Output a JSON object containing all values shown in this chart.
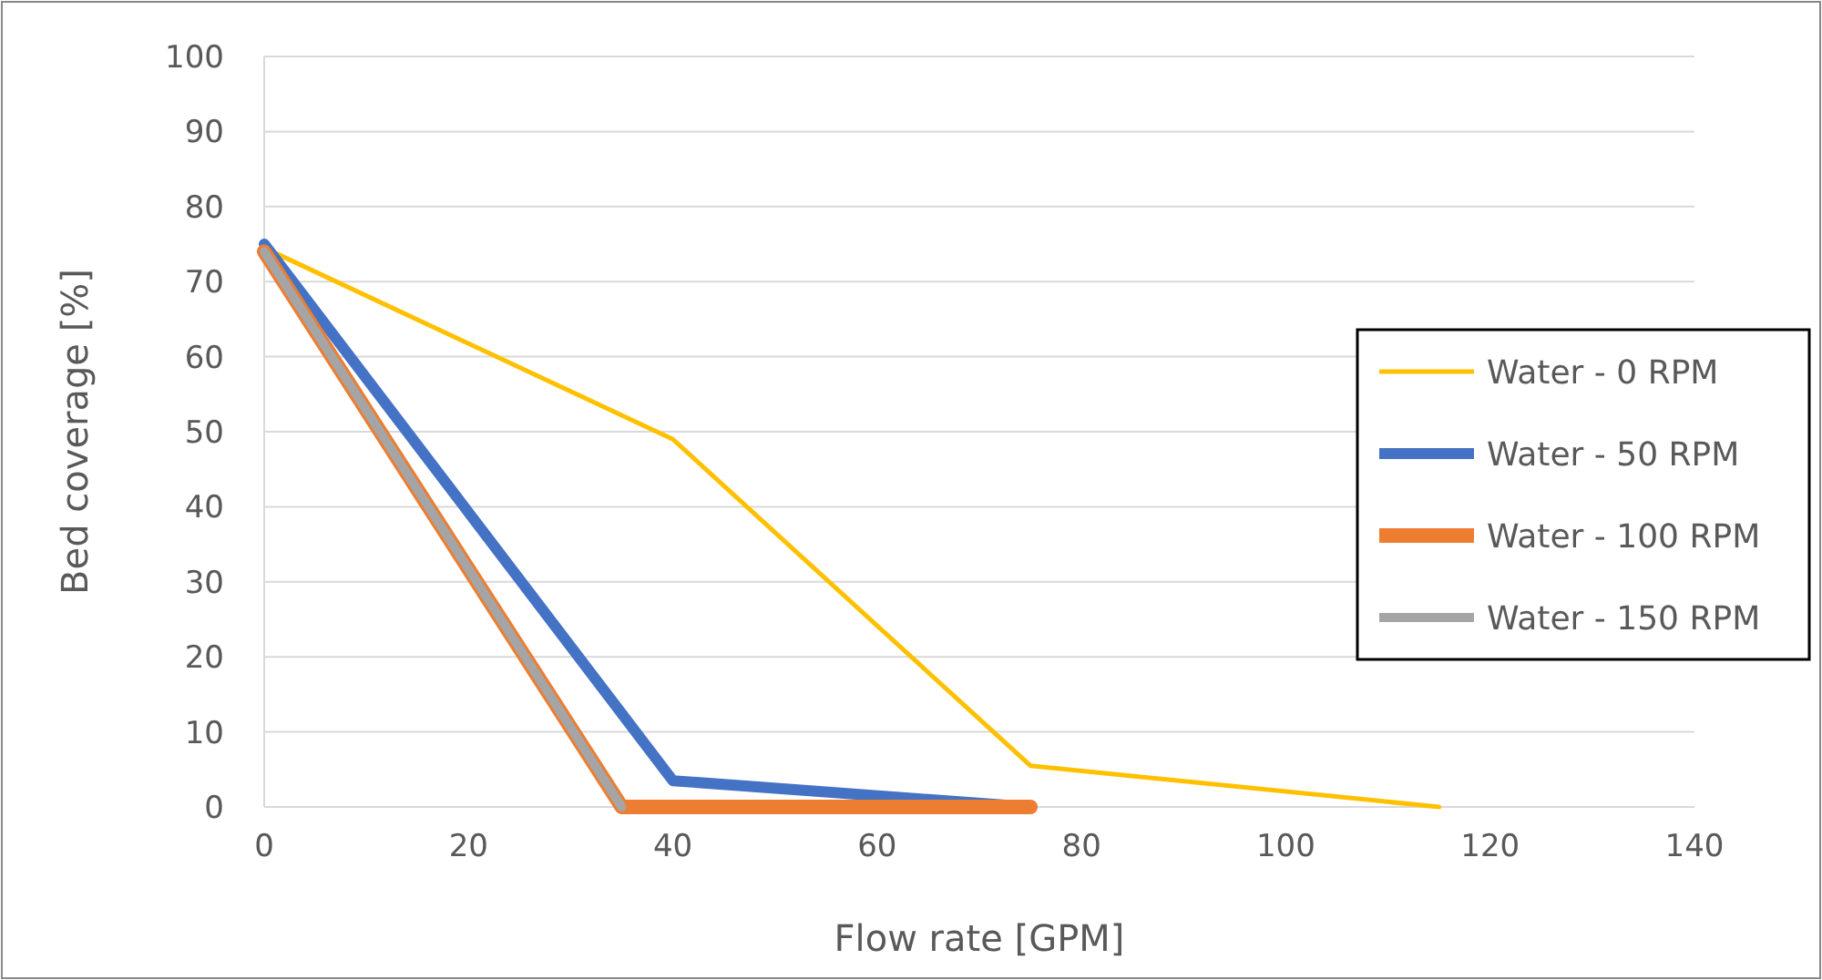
{
  "chart_data": {
    "type": "line",
    "xlabel": "Flow rate [GPM]",
    "ylabel": "Bed coverage [%]",
    "xlim": [
      0,
      140
    ],
    "xticks": [
      0,
      20,
      40,
      60,
      80,
      100,
      120,
      140
    ],
    "ylim": [
      0,
      100
    ],
    "yticks": [
      0,
      10,
      20,
      30,
      40,
      50,
      60,
      70,
      80,
      90,
      100
    ],
    "grid": "y",
    "legend": "right",
    "marker": "none",
    "line_style": "solid",
    "series": [
      {
        "name": "Water - 0 RPM",
        "color": "#ffc000",
        "x": [
          0,
          40,
          75,
          115
        ],
        "values": [
          74.5,
          49,
          5.5,
          0
        ]
      },
      {
        "name": "Water - 50 RPM",
        "color": "#4472c4",
        "x": [
          0,
          40,
          75
        ],
        "values": [
          75,
          3.5,
          0
        ]
      },
      {
        "name": "Water - 100 RPM",
        "color": "#ed7d31",
        "x": [
          0,
          35,
          75
        ],
        "values": [
          74,
          0,
          0
        ]
      },
      {
        "name": "Water - 150 RPM",
        "color": "#a5a5a5",
        "x": [
          0,
          35
        ],
        "values": [
          74,
          0
        ]
      }
    ]
  }
}
